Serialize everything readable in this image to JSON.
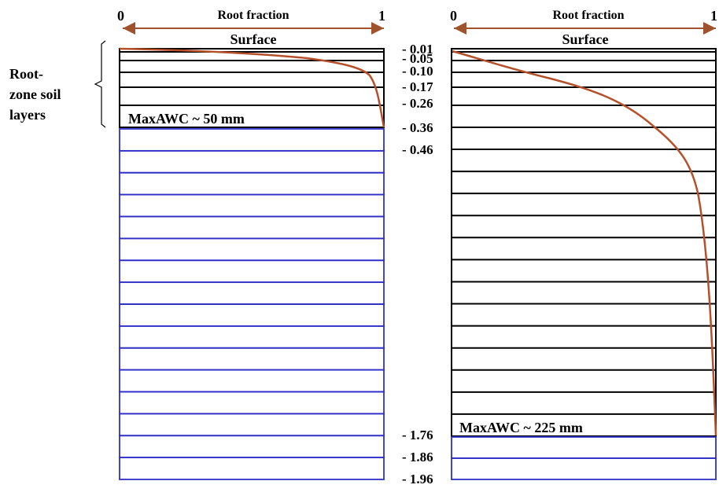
{
  "side_label": {
    "line1": "Root-",
    "line2": "zone soil",
    "line3": "layers"
  },
  "left_panel": {
    "axis_title": "Root fraction",
    "axis_min": "0",
    "axis_max": "1",
    "surface_label": "Surface",
    "max_awc_label": "MaxAWC ~ 50 mm",
    "root_zone_layer_count": 6,
    "deep_layer_count": 16
  },
  "right_panel": {
    "axis_title": "Root fraction",
    "axis_min": "0",
    "axis_max": "1",
    "surface_label": "Surface",
    "max_awc_label": "MaxAWC ~ 225 mm",
    "root_zone_layer_count": 19,
    "deep_layer_count": 2,
    "depth_labels": [
      "- 0.01",
      "- 0.05",
      "- 0.10",
      "- 0.17",
      "- 0.26",
      "- 0.36",
      "- 0.46",
      "- 1.76",
      "- 1.86",
      "- 1.96"
    ]
  },
  "colors": {
    "root_zone_lines": "#000000",
    "deep_layer_lines": "#2f2fc8",
    "root_curve": "#b5502a",
    "axis_arrow": "#a0522d"
  }
}
